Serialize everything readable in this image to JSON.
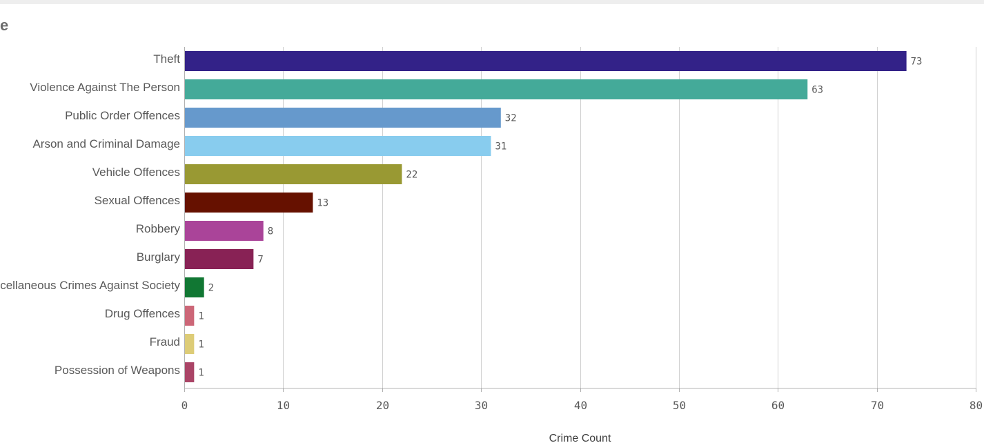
{
  "header": {
    "title_fragment": "e"
  },
  "chart_data": {
    "type": "bar",
    "orientation": "horizontal",
    "categories": [
      "Theft",
      "Violence Against The Person",
      "Public Order Offences",
      "Arson and Criminal Damage",
      "Vehicle Offences",
      "Sexual Offences",
      "Robbery",
      "Burglary",
      "Miscellaneous Crimes Against Society",
      "Drug Offences",
      "Fraud",
      "Possession of Weapons"
    ],
    "values": [
      73,
      63,
      32,
      31,
      22,
      13,
      8,
      7,
      2,
      1,
      1,
      1
    ],
    "colors": [
      "#332288",
      "#44aa99",
      "#6699cc",
      "#88ccee",
      "#999933",
      "#661100",
      "#aa4499",
      "#882255",
      "#117733",
      "#cc6677",
      "#ddcc77",
      "#aa4466"
    ],
    "xlabel": "Crime Count",
    "ylabel": "",
    "xlim": [
      0,
      80
    ],
    "xticks": [
      "0",
      "10",
      "20",
      "30",
      "40",
      "50",
      "60",
      "70",
      "80"
    ],
    "grid": true,
    "data_labels": true
  }
}
